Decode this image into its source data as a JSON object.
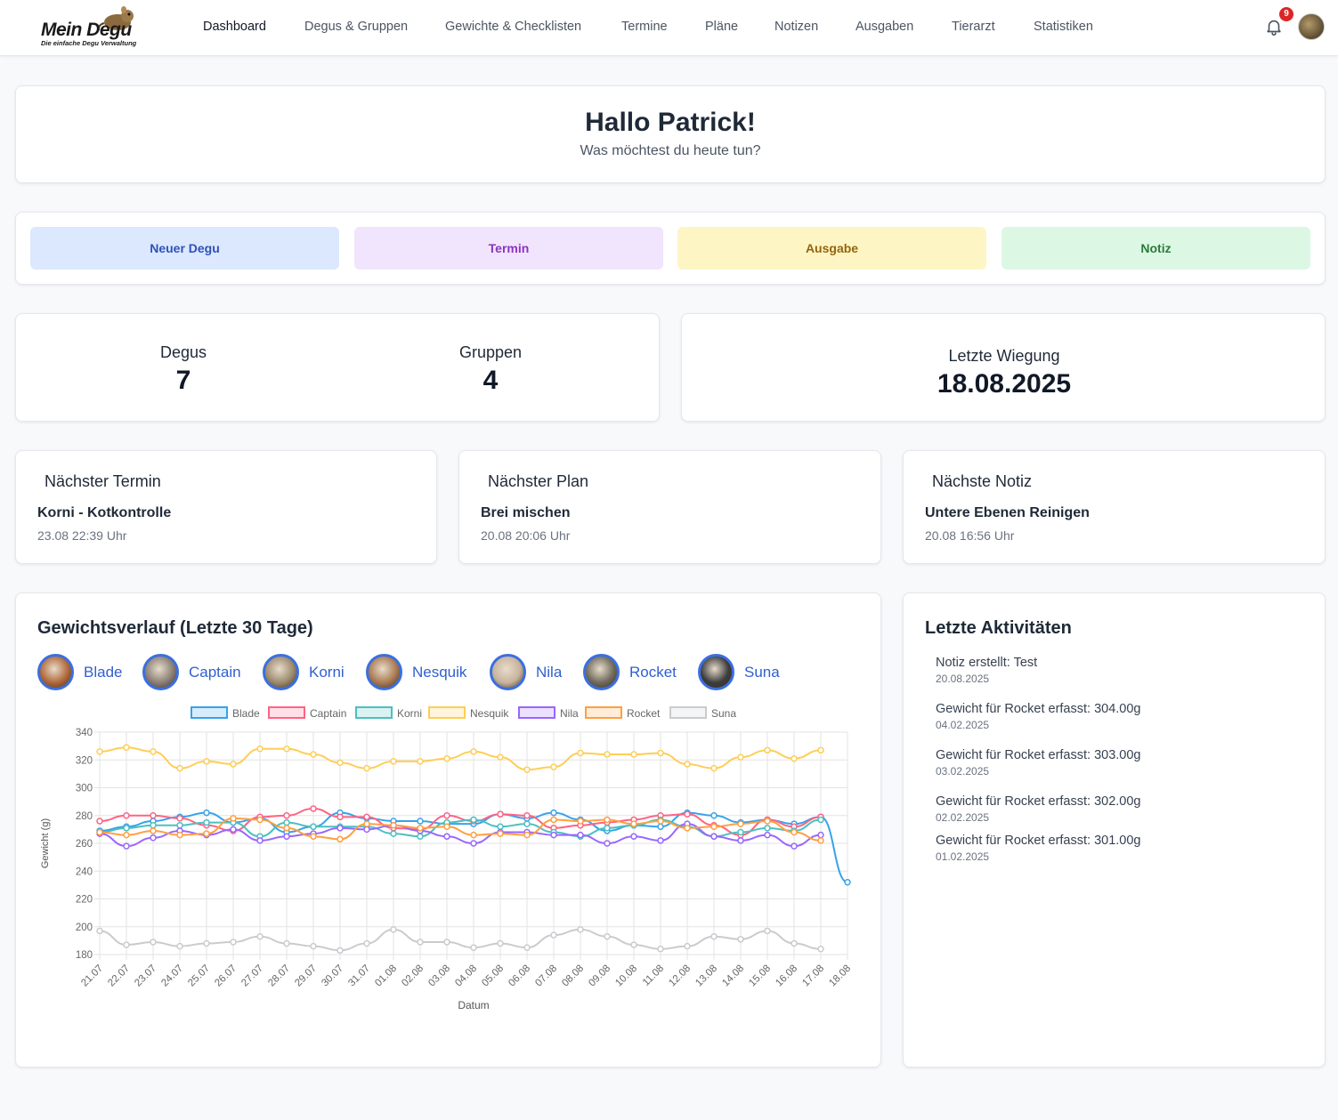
{
  "app": {
    "logo_text": "Mein Degu",
    "logo_sub": "Die einfache Degu Verwaltung",
    "nav": [
      {
        "label": "Dashboard",
        "active": true
      },
      {
        "label": "Degus & Gruppen"
      },
      {
        "label": "Gewichte & Checklisten"
      },
      {
        "label": "Termine"
      },
      {
        "label": "Pläne"
      },
      {
        "label": "Notizen"
      },
      {
        "label": "Ausgaben"
      },
      {
        "label": "Tierarzt"
      },
      {
        "label": "Statistiken"
      }
    ],
    "notification_count": "9"
  },
  "greeting": {
    "title": "Hallo Patrick!",
    "subtitle": "Was möchtest du heute tun?"
  },
  "quick_actions": [
    {
      "label": "Neuer Degu",
      "bg": "#dbe8fd",
      "color": "#2f52b8"
    },
    {
      "label": "Termin",
      "bg": "#f1e4fd",
      "color": "#8a35c0"
    },
    {
      "label": "Ausgabe",
      "bg": "#fdf6c4",
      "color": "#94640f"
    },
    {
      "label": "Notiz",
      "bg": "#dcf8e4",
      "color": "#2c7a3a"
    }
  ],
  "stats": {
    "degus_label": "Degus",
    "degus_value": "7",
    "groups_label": "Gruppen",
    "groups_value": "4",
    "weigh_label": "Letzte Wiegung",
    "weigh_value": "18.08.2025"
  },
  "next": {
    "termin": {
      "title": "Nächster Termin",
      "name": "Korni - Kotkontrolle",
      "date": "23.08 22:39 Uhr"
    },
    "plan": {
      "title": "Nächster Plan",
      "name": "Brei mischen",
      "date": "20.08 20:06 Uhr"
    },
    "notiz": {
      "title": "Nächste Notiz",
      "name": "Untere Ebenen Reinigen",
      "date": "20.08 16:56 Uhr"
    }
  },
  "weight_section": {
    "title": "Gewichtsverlauf (Letzte 30 Tage)"
  },
  "degus": [
    {
      "name": "Blade",
      "avatar_color": "#b0683a"
    },
    {
      "name": "Captain",
      "avatar_color": "#8a7f76"
    },
    {
      "name": "Korni",
      "avatar_color": "#9c8a6e"
    },
    {
      "name": "Nesquik",
      "avatar_color": "#a97a52"
    },
    {
      "name": "Nila",
      "avatar_color": "#c7b39c"
    },
    {
      "name": "Rocket",
      "avatar_color": "#6f6a5c"
    },
    {
      "name": "Suna",
      "avatar_color": "#3c3c3c"
    }
  ],
  "chart_data": {
    "type": "line",
    "xlabel": "Datum",
    "ylabel": "Gewicht (g)",
    "ylim": [
      180,
      340
    ],
    "yticks": [
      180,
      200,
      220,
      240,
      260,
      280,
      300,
      320,
      340
    ],
    "grid": true,
    "legend_position": "top",
    "categories": [
      "21.07",
      "22.07",
      "23.07",
      "24.07",
      "25.07",
      "26.07",
      "27.07",
      "28.07",
      "29.07",
      "30.07",
      "31.07",
      "01.08",
      "02.08",
      "03.08",
      "04.08",
      "05.08",
      "06.08",
      "07.08",
      "08.08",
      "09.08",
      "10.08",
      "11.08",
      "12.08",
      "13.08",
      "14.08",
      "15.08",
      "16.08",
      "17.08",
      "18.08"
    ],
    "series": [
      {
        "name": "Blade",
        "color": "#36a2eb",
        "values": [
          269,
          272,
          276,
          279,
          282,
          275,
          278,
          268,
          272,
          282,
          278,
          276,
          276,
          274,
          274,
          281,
          278,
          282,
          277,
          269,
          273,
          272,
          282,
          280,
          275,
          277,
          274,
          279,
          232
        ]
      },
      {
        "name": "Captain",
        "color": "#ff6384",
        "values": [
          276,
          280,
          280,
          278,
          273,
          269,
          279,
          280,
          285,
          279,
          279,
          271,
          270,
          280,
          276,
          281,
          280,
          271,
          273,
          275,
          277,
          280,
          281,
          273,
          266,
          277,
          272,
          279,
          null
        ]
      },
      {
        "name": "Korni",
        "color": "#4bc0c0",
        "values": [
          268,
          271,
          273,
          273,
          275,
          275,
          265,
          275,
          272,
          272,
          272,
          267,
          265,
          275,
          277,
          272,
          274,
          268,
          265,
          271,
          273,
          277,
          272,
          265,
          268,
          271,
          269,
          277,
          null
        ]
      },
      {
        "name": "Nesquik",
        "color": "#ffcd56",
        "values": [
          326,
          329,
          326,
          314,
          319,
          317,
          328,
          328,
          324,
          318,
          314,
          319,
          319,
          321,
          326,
          322,
          313,
          315,
          325,
          324,
          324,
          325,
          317,
          314,
          322,
          327,
          321,
          327,
          null
        ]
      },
      {
        "name": "Nila",
        "color": "#9966ff",
        "values": [
          267,
          258,
          264,
          269,
          266,
          270,
          262,
          265,
          267,
          271,
          270,
          273,
          269,
          265,
          260,
          268,
          268,
          266,
          266,
          260,
          265,
          262,
          274,
          265,
          262,
          266,
          258,
          266,
          null
        ]
      },
      {
        "name": "Rocket",
        "color": "#ff9f40",
        "values": [
          268,
          266,
          269,
          266,
          267,
          278,
          277,
          271,
          265,
          263,
          274,
          273,
          271,
          272,
          266,
          267,
          266,
          277,
          276,
          277,
          274,
          276,
          271,
          272,
          274,
          276,
          268,
          262,
          null
        ]
      },
      {
        "name": "Suna",
        "color": "#c9cbcf",
        "values": [
          197,
          187,
          189,
          186,
          188,
          189,
          193,
          188,
          186,
          183,
          188,
          198,
          189,
          189,
          185,
          188,
          185,
          194,
          198,
          193,
          187,
          184,
          186,
          193,
          191,
          197,
          188,
          184,
          null
        ]
      }
    ]
  },
  "activities": {
    "title": "Letzte Aktivitäten",
    "items": [
      {
        "title": "Notiz erstellt: Test",
        "date": "20.08.2025"
      },
      {
        "title": "Gewicht für Rocket erfasst: 304.00g",
        "date": "04.02.2025"
      },
      {
        "title": "Gewicht für Rocket erfasst: 303.00g",
        "date": "03.02.2025"
      },
      {
        "title": "Gewicht für Rocket erfasst: 302.00g",
        "date": "02.02.2025"
      },
      {
        "title": "Gewicht für Rocket erfasst: 301.00g",
        "date": "01.02.2025"
      }
    ]
  }
}
